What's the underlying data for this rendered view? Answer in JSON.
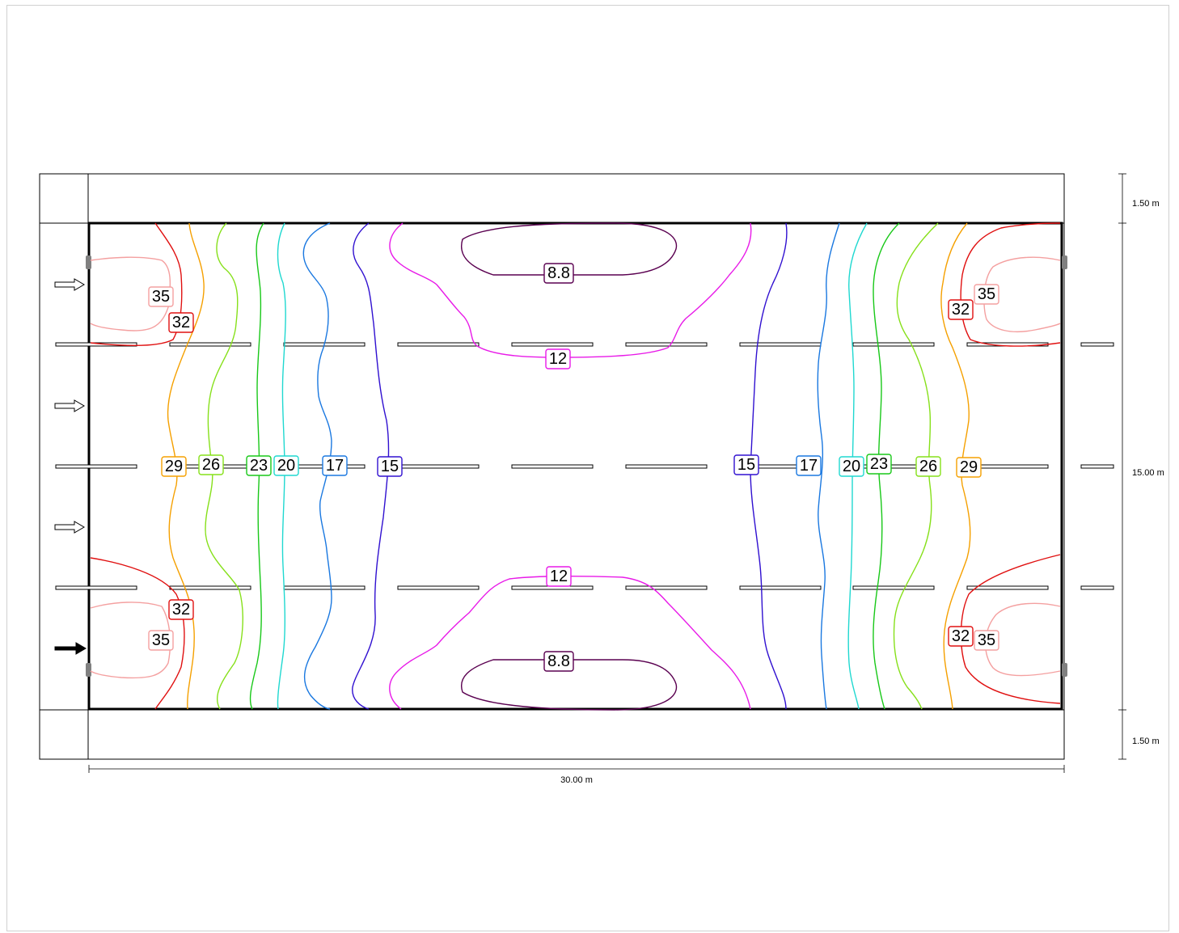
{
  "dimensions": {
    "width_label": "30.00 m",
    "height_label": "15.00 m",
    "top_margin_label": "1.50 m",
    "bottom_margin_label": "1.50 m"
  },
  "contour_labels": {
    "c35": "35",
    "c32": "32",
    "c29": "29",
    "c26": "26",
    "c23": "23",
    "c20": "20",
    "c17": "17",
    "c15": "15",
    "c12": "12",
    "c8_8": "8.8"
  },
  "contour_colors": {
    "c35": "#f4a0a0",
    "c32": "#e01010",
    "c29": "#f5a000",
    "c26": "#86e01a",
    "c23": "#18c818",
    "c20": "#1fd8d0",
    "c17": "#1a78e0",
    "c15": "#3010d0",
    "c12": "#e81ae8",
    "c8_8": "#5a0050"
  }
}
